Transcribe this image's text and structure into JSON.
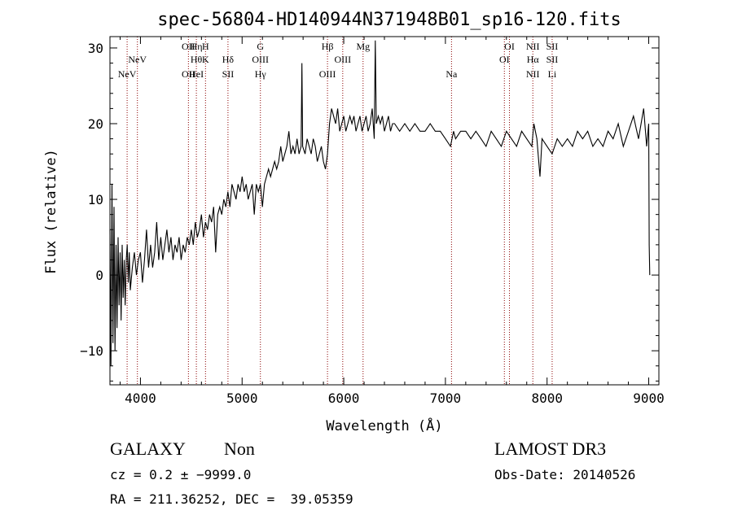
{
  "chart_data": {
    "type": "line",
    "title": "spec-56804-HD140944N371948B01_sp16-120.fits",
    "xlabel": "Wavelength (Å)",
    "ylabel": "Flux (relative)",
    "xlim": [
      3700,
      9100
    ],
    "ylim": [
      -14.5,
      31.5
    ],
    "x_ticks": [
      4000,
      5000,
      6000,
      7000,
      8000,
      9000
    ],
    "x_tick_labels": [
      "4000",
      "5000",
      "6000",
      "7000",
      "8000",
      "9000"
    ],
    "y_ticks": [
      -10,
      0,
      10,
      20,
      30
    ],
    "y_tick_labels": [
      "−10",
      "0",
      "10",
      "20",
      "30"
    ],
    "grid": false,
    "line_color": "#000000",
    "line_marker_color": "#8b0000",
    "series": [
      {
        "values": [
          [
            3700,
            6
          ],
          [
            3710,
            -12
          ],
          [
            3720,
            12
          ],
          [
            3730,
            -9
          ],
          [
            3740,
            9
          ],
          [
            3750,
            -10
          ],
          [
            3760,
            4
          ],
          [
            3770,
            -7
          ],
          [
            3780,
            5
          ],
          [
            3790,
            -4
          ],
          [
            3800,
            3
          ],
          [
            3810,
            -6
          ],
          [
            3820,
            4
          ],
          [
            3830,
            -3
          ],
          [
            3840,
            2
          ],
          [
            3850,
            -4
          ],
          [
            3860,
            2
          ],
          [
            3870,
            4
          ],
          [
            3880,
            -1
          ],
          [
            3890,
            3
          ],
          [
            3900,
            -2
          ],
          [
            3920,
            1
          ],
          [
            3940,
            3
          ],
          [
            3960,
            0
          ],
          [
            3980,
            2
          ],
          [
            4000,
            3
          ],
          [
            4020,
            -1
          ],
          [
            4040,
            2
          ],
          [
            4060,
            6
          ],
          [
            4080,
            1
          ],
          [
            4100,
            4
          ],
          [
            4120,
            1
          ],
          [
            4140,
            3
          ],
          [
            4160,
            7
          ],
          [
            4180,
            2
          ],
          [
            4200,
            5
          ],
          [
            4220,
            2
          ],
          [
            4240,
            4
          ],
          [
            4260,
            6
          ],
          [
            4280,
            3
          ],
          [
            4300,
            5
          ],
          [
            4320,
            2
          ],
          [
            4340,
            4
          ],
          [
            4360,
            3
          ],
          [
            4380,
            5
          ],
          [
            4400,
            2
          ],
          [
            4420,
            4
          ],
          [
            4440,
            3
          ],
          [
            4460,
            5
          ],
          [
            4480,
            4
          ],
          [
            4500,
            6
          ],
          [
            4520,
            4
          ],
          [
            4540,
            7
          ],
          [
            4560,
            5
          ],
          [
            4580,
            6
          ],
          [
            4600,
            8
          ],
          [
            4620,
            5
          ],
          [
            4640,
            7
          ],
          [
            4660,
            6
          ],
          [
            4680,
            8
          ],
          [
            4700,
            7
          ],
          [
            4720,
            9
          ],
          [
            4740,
            3
          ],
          [
            4760,
            8
          ],
          [
            4780,
            9
          ],
          [
            4800,
            8
          ],
          [
            4820,
            10
          ],
          [
            4840,
            9
          ],
          [
            4860,
            11
          ],
          [
            4880,
            9
          ],
          [
            4900,
            12
          ],
          [
            4920,
            11
          ],
          [
            4940,
            10
          ],
          [
            4960,
            12
          ],
          [
            4980,
            11
          ],
          [
            5000,
            13
          ],
          [
            5020,
            11
          ],
          [
            5040,
            12
          ],
          [
            5060,
            10
          ],
          [
            5080,
            11
          ],
          [
            5100,
            12
          ],
          [
            5120,
            8
          ],
          [
            5140,
            12
          ],
          [
            5160,
            11
          ],
          [
            5180,
            12
          ],
          [
            5200,
            9
          ],
          [
            5220,
            12
          ],
          [
            5240,
            13
          ],
          [
            5260,
            14
          ],
          [
            5280,
            13
          ],
          [
            5300,
            14
          ],
          [
            5320,
            15
          ],
          [
            5340,
            14
          ],
          [
            5360,
            15
          ],
          [
            5380,
            17
          ],
          [
            5400,
            15
          ],
          [
            5420,
            16
          ],
          [
            5440,
            17
          ],
          [
            5460,
            19
          ],
          [
            5480,
            16
          ],
          [
            5500,
            17
          ],
          [
            5520,
            16
          ],
          [
            5540,
            18
          ],
          [
            5560,
            16
          ],
          [
            5580,
            17
          ],
          [
            5588,
            28
          ],
          [
            5596,
            17
          ],
          [
            5620,
            16
          ],
          [
            5640,
            18
          ],
          [
            5660,
            17
          ],
          [
            5680,
            16
          ],
          [
            5700,
            18
          ],
          [
            5720,
            17
          ],
          [
            5740,
            15
          ],
          [
            5760,
            16
          ],
          [
            5780,
            17
          ],
          [
            5800,
            15
          ],
          [
            5820,
            14
          ],
          [
            5840,
            16
          ],
          [
            5860,
            20
          ],
          [
            5880,
            22
          ],
          [
            5900,
            21
          ],
          [
            5920,
            20
          ],
          [
            5940,
            22
          ],
          [
            5960,
            19
          ],
          [
            5980,
            20
          ],
          [
            6000,
            21
          ],
          [
            6020,
            19
          ],
          [
            6040,
            20
          ],
          [
            6060,
            21
          ],
          [
            6080,
            20
          ],
          [
            6100,
            21
          ],
          [
            6120,
            19
          ],
          [
            6140,
            20
          ],
          [
            6160,
            21
          ],
          [
            6180,
            19
          ],
          [
            6200,
            20
          ],
          [
            6220,
            21
          ],
          [
            6240,
            19
          ],
          [
            6260,
            20
          ],
          [
            6280,
            22
          ],
          [
            6300,
            18
          ],
          [
            6310,
            31
          ],
          [
            6320,
            20
          ],
          [
            6340,
            21
          ],
          [
            6360,
            20
          ],
          [
            6380,
            21
          ],
          [
            6400,
            19
          ],
          [
            6420,
            20
          ],
          [
            6440,
            21
          ],
          [
            6460,
            19
          ],
          [
            6480,
            20
          ],
          [
            6500,
            20
          ],
          [
            6550,
            19
          ],
          [
            6600,
            20
          ],
          [
            6650,
            19
          ],
          [
            6700,
            20
          ],
          [
            6750,
            19
          ],
          [
            6800,
            19
          ],
          [
            6850,
            20
          ],
          [
            6900,
            19
          ],
          [
            6950,
            19
          ],
          [
            7000,
            18
          ],
          [
            7050,
            17
          ],
          [
            7080,
            19
          ],
          [
            7100,
            18
          ],
          [
            7150,
            19
          ],
          [
            7200,
            19
          ],
          [
            7250,
            18
          ],
          [
            7300,
            19
          ],
          [
            7350,
            18
          ],
          [
            7400,
            17
          ],
          [
            7450,
            19
          ],
          [
            7500,
            18
          ],
          [
            7550,
            17
          ],
          [
            7600,
            19
          ],
          [
            7650,
            18
          ],
          [
            7700,
            17
          ],
          [
            7750,
            19
          ],
          [
            7800,
            18
          ],
          [
            7850,
            17
          ],
          [
            7870,
            20
          ],
          [
            7900,
            18
          ],
          [
            7930,
            13
          ],
          [
            7950,
            18
          ],
          [
            8000,
            17
          ],
          [
            8050,
            16
          ],
          [
            8100,
            18
          ],
          [
            8150,
            17
          ],
          [
            8200,
            18
          ],
          [
            8250,
            17
          ],
          [
            8300,
            19
          ],
          [
            8350,
            18
          ],
          [
            8400,
            19
          ],
          [
            8450,
            17
          ],
          [
            8500,
            18
          ],
          [
            8550,
            17
          ],
          [
            8600,
            19
          ],
          [
            8650,
            18
          ],
          [
            8700,
            20
          ],
          [
            8750,
            17
          ],
          [
            8800,
            19
          ],
          [
            8850,
            21
          ],
          [
            8900,
            18
          ],
          [
            8950,
            22
          ],
          [
            8980,
            17
          ],
          [
            9000,
            20
          ],
          [
            9005,
            4
          ],
          [
            9010,
            0
          ]
        ]
      }
    ],
    "lines": [
      {
        "wavelength": 3869,
        "labels": [
          {
            "text": "NeV",
            "row": 3
          }
        ]
      },
      {
        "wavelength": 3970,
        "labels": [
          {
            "text": "NeV",
            "row": 2
          }
        ]
      },
      {
        "wavelength": 4472,
        "labels": [
          {
            "text": "OII",
            "row": 1
          },
          {
            "text": "OII",
            "row": 3
          }
        ]
      },
      {
        "wavelength": 4550,
        "labels": [
          {
            "text": "Hη",
            "row": 1
          },
          {
            "text": "Hθ",
            "row": 2
          },
          {
            "text": "HeI",
            "row": 3
          }
        ]
      },
      {
        "wavelength": 4640,
        "labels": [
          {
            "text": "H",
            "row": 1
          },
          {
            "text": "K",
            "row": 2
          }
        ]
      },
      {
        "wavelength": 4861,
        "labels": [
          {
            "text": "Hδ",
            "row": 2
          },
          {
            "text": "SII",
            "row": 3
          }
        ]
      },
      {
        "wavelength": 5180,
        "labels": [
          {
            "text": "G",
            "row": 1
          },
          {
            "text": "OIII",
            "row": 2
          },
          {
            "text": "Hγ",
            "row": 3
          }
        ]
      },
      {
        "wavelength": 5840,
        "labels": [
          {
            "text": "Hβ",
            "row": 1
          },
          {
            "text": "OIII",
            "row": 3
          }
        ]
      },
      {
        "wavelength": 5990,
        "labels": [
          {
            "text": "OIII",
            "row": 2
          }
        ]
      },
      {
        "wavelength": 6190,
        "labels": [
          {
            "text": "Mg",
            "row": 1
          }
        ]
      },
      {
        "wavelength": 7060,
        "labels": [
          {
            "text": "Na",
            "row": 3
          }
        ]
      },
      {
        "wavelength": 7580,
        "labels": [
          {
            "text": "OI",
            "row": 2
          }
        ]
      },
      {
        "wavelength": 7630,
        "labels": [
          {
            "text": "OI",
            "row": 1
          }
        ]
      },
      {
        "wavelength": 7860,
        "labels": [
          {
            "text": "NII",
            "row": 1
          },
          {
            "text": "Hα",
            "row": 2
          },
          {
            "text": "NII",
            "row": 3
          }
        ]
      },
      {
        "wavelength": 8050,
        "labels": [
          {
            "text": "SII",
            "row": 1
          },
          {
            "text": "SII",
            "row": 2
          },
          {
            "text": "Li",
            "row": 3
          }
        ]
      }
    ]
  },
  "footer": {
    "class_label": "GALAXY",
    "subclass_label": "Non",
    "survey_label": "LAMOST DR3",
    "cz_text": "cz = 0.2 ± −9999.0",
    "obs_date_text": "Obs-Date: 20140526",
    "coords_text": "RA = 211.36252, DEC =  39.05359"
  }
}
